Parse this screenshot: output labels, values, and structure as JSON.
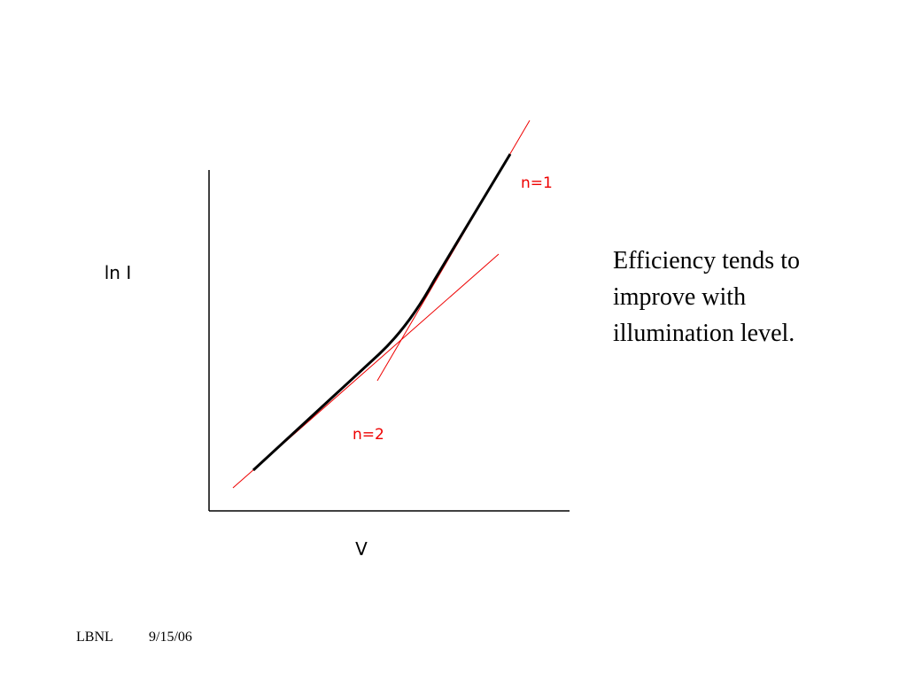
{
  "diagram": {
    "y_label": "ln I",
    "x_label": "V",
    "upper_label": "n=1",
    "lower_label": "n=2"
  },
  "body": {
    "lines": [
      "Efficiency tends to",
      "improve with",
      "illumination level."
    ]
  },
  "footer": {
    "org": "LBNL",
    "date": "9/15/06"
  }
}
